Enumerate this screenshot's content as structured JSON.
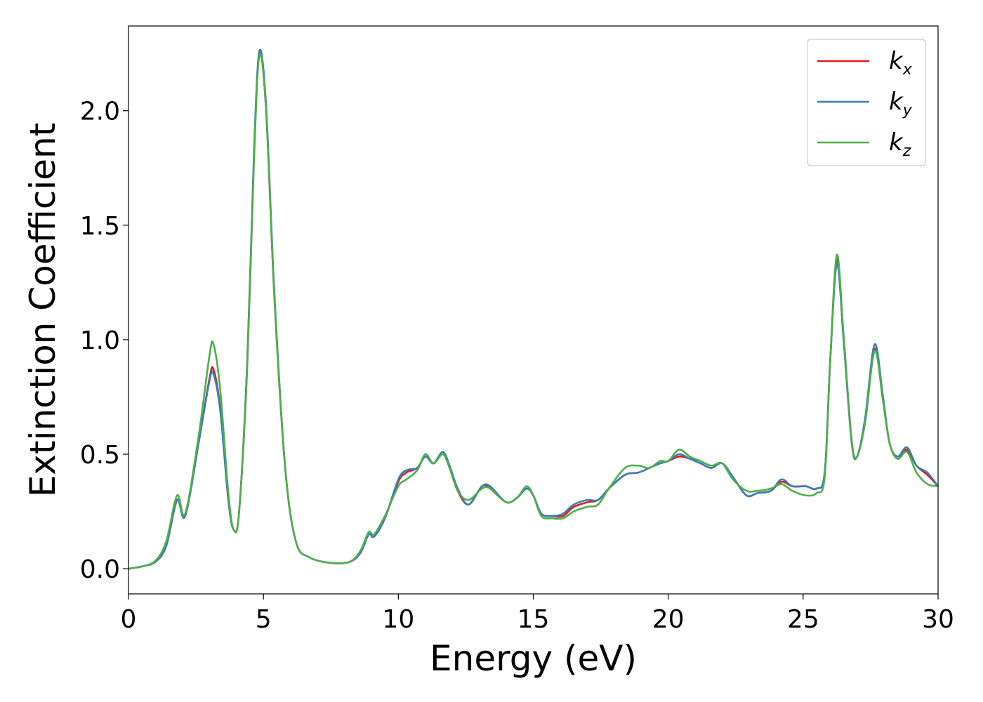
{
  "chart_data": {
    "type": "line",
    "title": "",
    "xlabel": "Energy (eV)",
    "ylabel": "Extinction Coefficient",
    "xlim": [
      0,
      30
    ],
    "ylim": [
      -0.11,
      2.37
    ],
    "xticks": [
      "0",
      "5",
      "10",
      "15",
      "20",
      "25",
      "30"
    ],
    "yticks": [
      "0.0",
      "0.5",
      "1.0",
      "1.5",
      "2.0"
    ],
    "grid": false,
    "legend_position": "top-right",
    "series": [
      {
        "name": "k",
        "name_sub": "x",
        "color": "#e41a1c",
        "points": [
          [
            0,
            0
          ],
          [
            0.5,
            0.01
          ],
          [
            1.0,
            0.03
          ],
          [
            1.4,
            0.1
          ],
          [
            1.8,
            0.3
          ],
          [
            2.1,
            0.23
          ],
          [
            2.6,
            0.55
          ],
          [
            3.0,
            0.83
          ],
          [
            3.15,
            0.87
          ],
          [
            3.4,
            0.7
          ],
          [
            3.7,
            0.3
          ],
          [
            3.9,
            0.17
          ],
          [
            4.1,
            0.25
          ],
          [
            4.4,
            0.9
          ],
          [
            4.65,
            1.8
          ],
          [
            4.85,
            2.25
          ],
          [
            5.1,
            2.0
          ],
          [
            5.4,
            1.2
          ],
          [
            5.8,
            0.45
          ],
          [
            6.2,
            0.12
          ],
          [
            6.7,
            0.05
          ],
          [
            7.5,
            0.025
          ],
          [
            8.2,
            0.03
          ],
          [
            8.6,
            0.07
          ],
          [
            8.9,
            0.15
          ],
          [
            9.1,
            0.14
          ],
          [
            9.5,
            0.22
          ],
          [
            10.0,
            0.38
          ],
          [
            10.3,
            0.42
          ],
          [
            10.7,
            0.44
          ],
          [
            11.0,
            0.49
          ],
          [
            11.3,
            0.46
          ],
          [
            11.65,
            0.5
          ],
          [
            11.9,
            0.44
          ],
          [
            12.2,
            0.34
          ],
          [
            12.6,
            0.28
          ],
          [
            13.1,
            0.36
          ],
          [
            13.4,
            0.35
          ],
          [
            14.0,
            0.29
          ],
          [
            14.4,
            0.31
          ],
          [
            14.75,
            0.35
          ],
          [
            15.0,
            0.32
          ],
          [
            15.3,
            0.24
          ],
          [
            15.7,
            0.23
          ],
          [
            16.1,
            0.23
          ],
          [
            16.5,
            0.27
          ],
          [
            17.0,
            0.29
          ],
          [
            17.4,
            0.3
          ],
          [
            17.8,
            0.35
          ],
          [
            18.4,
            0.41
          ],
          [
            18.9,
            0.42
          ],
          [
            19.3,
            0.44
          ],
          [
            19.7,
            0.46
          ],
          [
            20.0,
            0.47
          ],
          [
            20.4,
            0.49
          ],
          [
            20.8,
            0.48
          ],
          [
            21.2,
            0.46
          ],
          [
            21.6,
            0.44
          ],
          [
            22.0,
            0.46
          ],
          [
            22.4,
            0.4
          ],
          [
            22.9,
            0.32
          ],
          [
            23.3,
            0.33
          ],
          [
            23.8,
            0.34
          ],
          [
            24.2,
            0.38
          ],
          [
            24.6,
            0.36
          ],
          [
            25.1,
            0.36
          ],
          [
            25.5,
            0.35
          ],
          [
            25.8,
            0.42
          ],
          [
            26.0,
            0.9
          ],
          [
            26.25,
            1.35
          ],
          [
            26.5,
            1.0
          ],
          [
            26.8,
            0.55
          ],
          [
            27.0,
            0.49
          ],
          [
            27.3,
            0.65
          ],
          [
            27.65,
            0.96
          ],
          [
            27.95,
            0.75
          ],
          [
            28.2,
            0.55
          ],
          [
            28.5,
            0.48
          ],
          [
            28.85,
            0.52
          ],
          [
            29.2,
            0.45
          ],
          [
            29.6,
            0.41
          ],
          [
            30,
            0.36
          ]
        ]
      },
      {
        "name": "k",
        "name_sub": "y",
        "color": "#377eb8",
        "points": [
          [
            0,
            0
          ],
          [
            0.5,
            0.01
          ],
          [
            1.0,
            0.03
          ],
          [
            1.4,
            0.1
          ],
          [
            1.8,
            0.3
          ],
          [
            2.1,
            0.23
          ],
          [
            2.6,
            0.55
          ],
          [
            3.0,
            0.82
          ],
          [
            3.15,
            0.85
          ],
          [
            3.4,
            0.69
          ],
          [
            3.7,
            0.3
          ],
          [
            3.9,
            0.17
          ],
          [
            4.1,
            0.25
          ],
          [
            4.4,
            0.9
          ],
          [
            4.65,
            1.82
          ],
          [
            4.85,
            2.26
          ],
          [
            5.1,
            2.02
          ],
          [
            5.4,
            1.22
          ],
          [
            5.8,
            0.45
          ],
          [
            6.2,
            0.12
          ],
          [
            6.7,
            0.05
          ],
          [
            7.5,
            0.025
          ],
          [
            8.2,
            0.03
          ],
          [
            8.6,
            0.07
          ],
          [
            8.9,
            0.15
          ],
          [
            9.1,
            0.14
          ],
          [
            9.5,
            0.22
          ],
          [
            10.0,
            0.39
          ],
          [
            10.3,
            0.43
          ],
          [
            10.7,
            0.44
          ],
          [
            11.0,
            0.49
          ],
          [
            11.3,
            0.46
          ],
          [
            11.65,
            0.51
          ],
          [
            11.9,
            0.45
          ],
          [
            12.2,
            0.35
          ],
          [
            12.6,
            0.28
          ],
          [
            13.1,
            0.36
          ],
          [
            13.4,
            0.36
          ],
          [
            14.0,
            0.29
          ],
          [
            14.4,
            0.31
          ],
          [
            14.75,
            0.35
          ],
          [
            15.0,
            0.32
          ],
          [
            15.3,
            0.24
          ],
          [
            15.7,
            0.23
          ],
          [
            16.1,
            0.24
          ],
          [
            16.5,
            0.28
          ],
          [
            17.0,
            0.3
          ],
          [
            17.4,
            0.3
          ],
          [
            17.8,
            0.35
          ],
          [
            18.4,
            0.41
          ],
          [
            18.9,
            0.42
          ],
          [
            19.3,
            0.44
          ],
          [
            19.7,
            0.46
          ],
          [
            20.0,
            0.47
          ],
          [
            20.4,
            0.5
          ],
          [
            20.8,
            0.48
          ],
          [
            21.2,
            0.46
          ],
          [
            21.6,
            0.44
          ],
          [
            22.0,
            0.46
          ],
          [
            22.4,
            0.4
          ],
          [
            22.9,
            0.32
          ],
          [
            23.3,
            0.33
          ],
          [
            23.8,
            0.34
          ],
          [
            24.2,
            0.39
          ],
          [
            24.6,
            0.36
          ],
          [
            25.1,
            0.36
          ],
          [
            25.5,
            0.35
          ],
          [
            25.8,
            0.42
          ],
          [
            26.0,
            0.9
          ],
          [
            26.25,
            1.33
          ],
          [
            26.5,
            1.0
          ],
          [
            26.8,
            0.55
          ],
          [
            27.0,
            0.49
          ],
          [
            27.3,
            0.66
          ],
          [
            27.65,
            0.98
          ],
          [
            27.95,
            0.76
          ],
          [
            28.2,
            0.55
          ],
          [
            28.5,
            0.49
          ],
          [
            28.85,
            0.53
          ],
          [
            29.2,
            0.45
          ],
          [
            29.6,
            0.42
          ],
          [
            30,
            0.36
          ]
        ]
      },
      {
        "name": "k",
        "name_sub": "z",
        "color": "#4daf4a",
        "points": [
          [
            0,
            0
          ],
          [
            0.5,
            0.01
          ],
          [
            1.0,
            0.035
          ],
          [
            1.4,
            0.12
          ],
          [
            1.8,
            0.32
          ],
          [
            2.1,
            0.24
          ],
          [
            2.6,
            0.58
          ],
          [
            3.0,
            0.93
          ],
          [
            3.15,
            0.98
          ],
          [
            3.4,
            0.78
          ],
          [
            3.7,
            0.33
          ],
          [
            3.9,
            0.17
          ],
          [
            4.1,
            0.25
          ],
          [
            4.4,
            0.88
          ],
          [
            4.65,
            1.78
          ],
          [
            4.85,
            2.24
          ],
          [
            5.1,
            2.0
          ],
          [
            5.4,
            1.2
          ],
          [
            5.8,
            0.45
          ],
          [
            6.2,
            0.12
          ],
          [
            6.7,
            0.05
          ],
          [
            7.5,
            0.025
          ],
          [
            8.2,
            0.03
          ],
          [
            8.6,
            0.08
          ],
          [
            8.9,
            0.16
          ],
          [
            9.1,
            0.15
          ],
          [
            9.5,
            0.23
          ],
          [
            10.0,
            0.36
          ],
          [
            10.3,
            0.39
          ],
          [
            10.7,
            0.43
          ],
          [
            11.0,
            0.5
          ],
          [
            11.3,
            0.46
          ],
          [
            11.65,
            0.5
          ],
          [
            11.9,
            0.44
          ],
          [
            12.2,
            0.34
          ],
          [
            12.6,
            0.3
          ],
          [
            13.1,
            0.35
          ],
          [
            13.4,
            0.35
          ],
          [
            14.0,
            0.29
          ],
          [
            14.4,
            0.31
          ],
          [
            14.75,
            0.36
          ],
          [
            15.0,
            0.32
          ],
          [
            15.3,
            0.23
          ],
          [
            15.7,
            0.22
          ],
          [
            16.1,
            0.22
          ],
          [
            16.5,
            0.25
          ],
          [
            17.0,
            0.27
          ],
          [
            17.4,
            0.28
          ],
          [
            17.8,
            0.35
          ],
          [
            18.4,
            0.44
          ],
          [
            18.9,
            0.45
          ],
          [
            19.3,
            0.44
          ],
          [
            19.7,
            0.47
          ],
          [
            20.0,
            0.47
          ],
          [
            20.4,
            0.52
          ],
          [
            20.8,
            0.49
          ],
          [
            21.2,
            0.47
          ],
          [
            21.6,
            0.45
          ],
          [
            22.0,
            0.46
          ],
          [
            22.4,
            0.39
          ],
          [
            22.9,
            0.34
          ],
          [
            23.3,
            0.34
          ],
          [
            23.8,
            0.35
          ],
          [
            24.2,
            0.37
          ],
          [
            24.6,
            0.34
          ],
          [
            25.1,
            0.32
          ],
          [
            25.5,
            0.33
          ],
          [
            25.8,
            0.4
          ],
          [
            26.0,
            0.9
          ],
          [
            26.25,
            1.37
          ],
          [
            26.5,
            1.02
          ],
          [
            26.8,
            0.56
          ],
          [
            27.0,
            0.49
          ],
          [
            27.3,
            0.64
          ],
          [
            27.65,
            0.95
          ],
          [
            27.95,
            0.74
          ],
          [
            28.2,
            0.55
          ],
          [
            28.5,
            0.48
          ],
          [
            28.85,
            0.51
          ],
          [
            29.2,
            0.42
          ],
          [
            29.6,
            0.37
          ],
          [
            30,
            0.36
          ]
        ]
      }
    ]
  }
}
